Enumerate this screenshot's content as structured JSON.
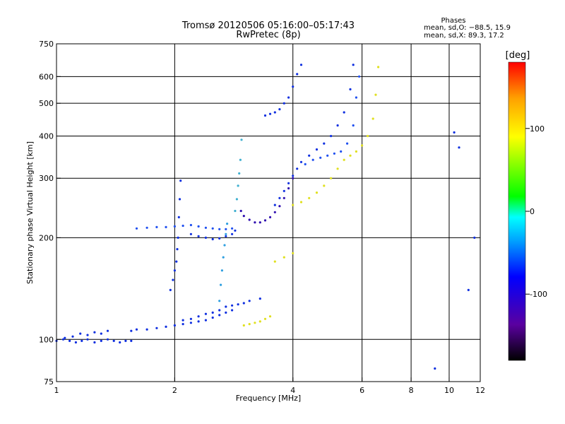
{
  "chart_data": {
    "type": "scatter",
    "title": "Tromsø 20120506 05:16:00–05:17:43",
    "subtitle": "RwPretec (8p)",
    "xlabel": "Frequency [MHz]",
    "ylabel": "Stationary phase Virtual Height [km]",
    "x_scale": "log",
    "y_scale": "log",
    "xlim": [
      1,
      12
    ],
    "ylim": [
      75,
      750
    ],
    "x_ticks": [
      1,
      2,
      4,
      6,
      8,
      10,
      12
    ],
    "y_ticks": [
      75,
      100,
      200,
      300,
      400,
      500,
      600,
      750
    ],
    "x_gridlines": [
      2,
      4,
      6,
      8,
      10
    ],
    "y_gridlines": [
      100,
      200,
      300,
      400,
      500,
      600
    ],
    "phase_box": {
      "header": "Phases",
      "line1": "mean, sd,O: −88.5, 15.9",
      "line2": "mean, sd,X:  89.3, 17.2"
    },
    "colorbar": {
      "label": "[deg]",
      "range": [
        -180,
        180
      ],
      "ticks": [
        100,
        0,
        -100
      ],
      "colors": [
        "#000000",
        "#5a00a0",
        "#0000ff",
        "#00a0ff",
        "#00ffff",
        "#00ff00",
        "#ffff00",
        "#ffa000",
        "#ff0000"
      ]
    },
    "series": [
      {
        "color": "#1030e0",
        "x": [
          1.0,
          1.04,
          1.08,
          1.12,
          1.16,
          1.2,
          1.25,
          1.3,
          1.35,
          1.4,
          1.45,
          1.5,
          1.55
        ],
        "y": [
          99,
          100,
          99,
          98,
          99,
          100,
          98,
          99,
          100,
          99,
          98,
          99,
          99
        ]
      },
      {
        "color": "#1030e0",
        "x": [
          1.05,
          1.1,
          1.15,
          1.2,
          1.25,
          1.3,
          1.35
        ],
        "y": [
          101,
          102,
          104,
          103,
          105,
          104,
          106
        ]
      },
      {
        "color": "#1030e0",
        "x": [
          1.55,
          1.6,
          1.7,
          1.8,
          1.9,
          2.0,
          2.1,
          2.2,
          2.3,
          2.4,
          2.5,
          2.6,
          2.7,
          2.8
        ],
        "y": [
          106,
          107,
          107,
          108,
          109,
          110,
          111,
          112,
          113,
          114,
          116,
          118,
          120,
          122
        ]
      },
      {
        "color": "#1030e0",
        "x": [
          2.1,
          2.2,
          2.3,
          2.4,
          2.5,
          2.6,
          2.7,
          2.8,
          2.9,
          3.0,
          3.1,
          3.3
        ],
        "y": [
          114,
          115,
          117,
          119,
          120,
          122,
          125,
          126,
          127,
          128,
          130,
          132
        ]
      },
      {
        "color": "#2050f0",
        "x": [
          1.6,
          1.7,
          1.8,
          1.9,
          2.0,
          2.1,
          2.2,
          2.3,
          2.4,
          2.5,
          2.6,
          2.7,
          2.8
        ],
        "y": [
          213,
          214,
          215,
          215,
          216,
          217,
          218,
          216,
          214,
          213,
          212,
          212,
          213
        ]
      },
      {
        "color": "#1030e0",
        "x": [
          1.95,
          1.98,
          2.0,
          2.02,
          2.03,
          2.04,
          2.05,
          2.06,
          2.07
        ],
        "y": [
          140,
          150,
          160,
          170,
          185,
          200,
          230,
          260,
          295
        ]
      },
      {
        "color": "#1030e0",
        "x": [
          2.2,
          2.3,
          2.4,
          2.5,
          2.6,
          2.7,
          2.8,
          2.85
        ],
        "y": [
          205,
          202,
          200,
          198,
          199,
          202,
          205,
          210
        ]
      },
      {
        "color": "#30a0e0",
        "x": [
          2.6,
          2.62,
          2.64,
          2.66,
          2.68,
          2.7,
          2.72
        ],
        "y": [
          130,
          145,
          160,
          175,
          190,
          205,
          220
        ]
      },
      {
        "color": "#40b0d0",
        "x": [
          2.85,
          2.88,
          2.9,
          2.92,
          2.94,
          2.96
        ],
        "y": [
          240,
          260,
          285,
          310,
          340,
          390
        ]
      },
      {
        "color": "#e0e020",
        "x": [
          3.0,
          3.1,
          3.2,
          3.3,
          3.4,
          3.5
        ],
        "y": [
          110,
          111,
          112,
          113,
          115,
          117
        ]
      },
      {
        "color": "#3010b0",
        "x": [
          2.95,
          3.0,
          3.1,
          3.2,
          3.3,
          3.4,
          3.5,
          3.6,
          3.7,
          3.8,
          3.9,
          4.0
        ],
        "y": [
          240,
          232,
          226,
          222,
          222,
          225,
          230,
          238,
          248,
          262,
          280,
          300
        ]
      },
      {
        "color": "#1030e0",
        "x": [
          3.6,
          3.7,
          3.8,
          3.9,
          4.0,
          4.1,
          4.2,
          4.4,
          4.6,
          4.8,
          5.0,
          5.2,
          5.4,
          5.6,
          5.7
        ],
        "y": [
          250,
          262,
          275,
          290,
          305,
          320,
          335,
          350,
          365,
          380,
          400,
          430,
          470,
          550,
          650
        ]
      },
      {
        "color": "#1030e0",
        "x": [
          3.4,
          3.5,
          3.6,
          3.7,
          3.8,
          3.9,
          4.0,
          4.1,
          4.2
        ],
        "y": [
          460,
          465,
          470,
          480,
          500,
          520,
          560,
          610,
          650
        ]
      },
      {
        "color": "#2050f0",
        "x": [
          4.3,
          4.5,
          4.7,
          4.9,
          5.1,
          5.3,
          5.5,
          5.7,
          5.8,
          5.9
        ],
        "y": [
          330,
          340,
          345,
          350,
          355,
          360,
          380,
          430,
          520,
          600
        ]
      },
      {
        "color": "#e0e020",
        "x": [
          4.0,
          4.2,
          4.4,
          4.6,
          4.8,
          5.0,
          5.2,
          5.4,
          5.6,
          5.8,
          6.0,
          6.2,
          6.4,
          6.5,
          6.6
        ],
        "y": [
          250,
          255,
          262,
          272,
          285,
          300,
          320,
          340,
          350,
          360,
          375,
          400,
          450,
          530,
          640
        ]
      },
      {
        "color": "#e0e020",
        "x": [
          3.6,
          3.8,
          4.0
        ],
        "y": [
          170,
          175,
          180
        ]
      },
      {
        "color": "#1030e0",
        "x": [
          9.2,
          10.3,
          10.6,
          11.2,
          11.6
        ],
        "y": [
          82,
          410,
          370,
          140,
          200
        ]
      }
    ]
  }
}
